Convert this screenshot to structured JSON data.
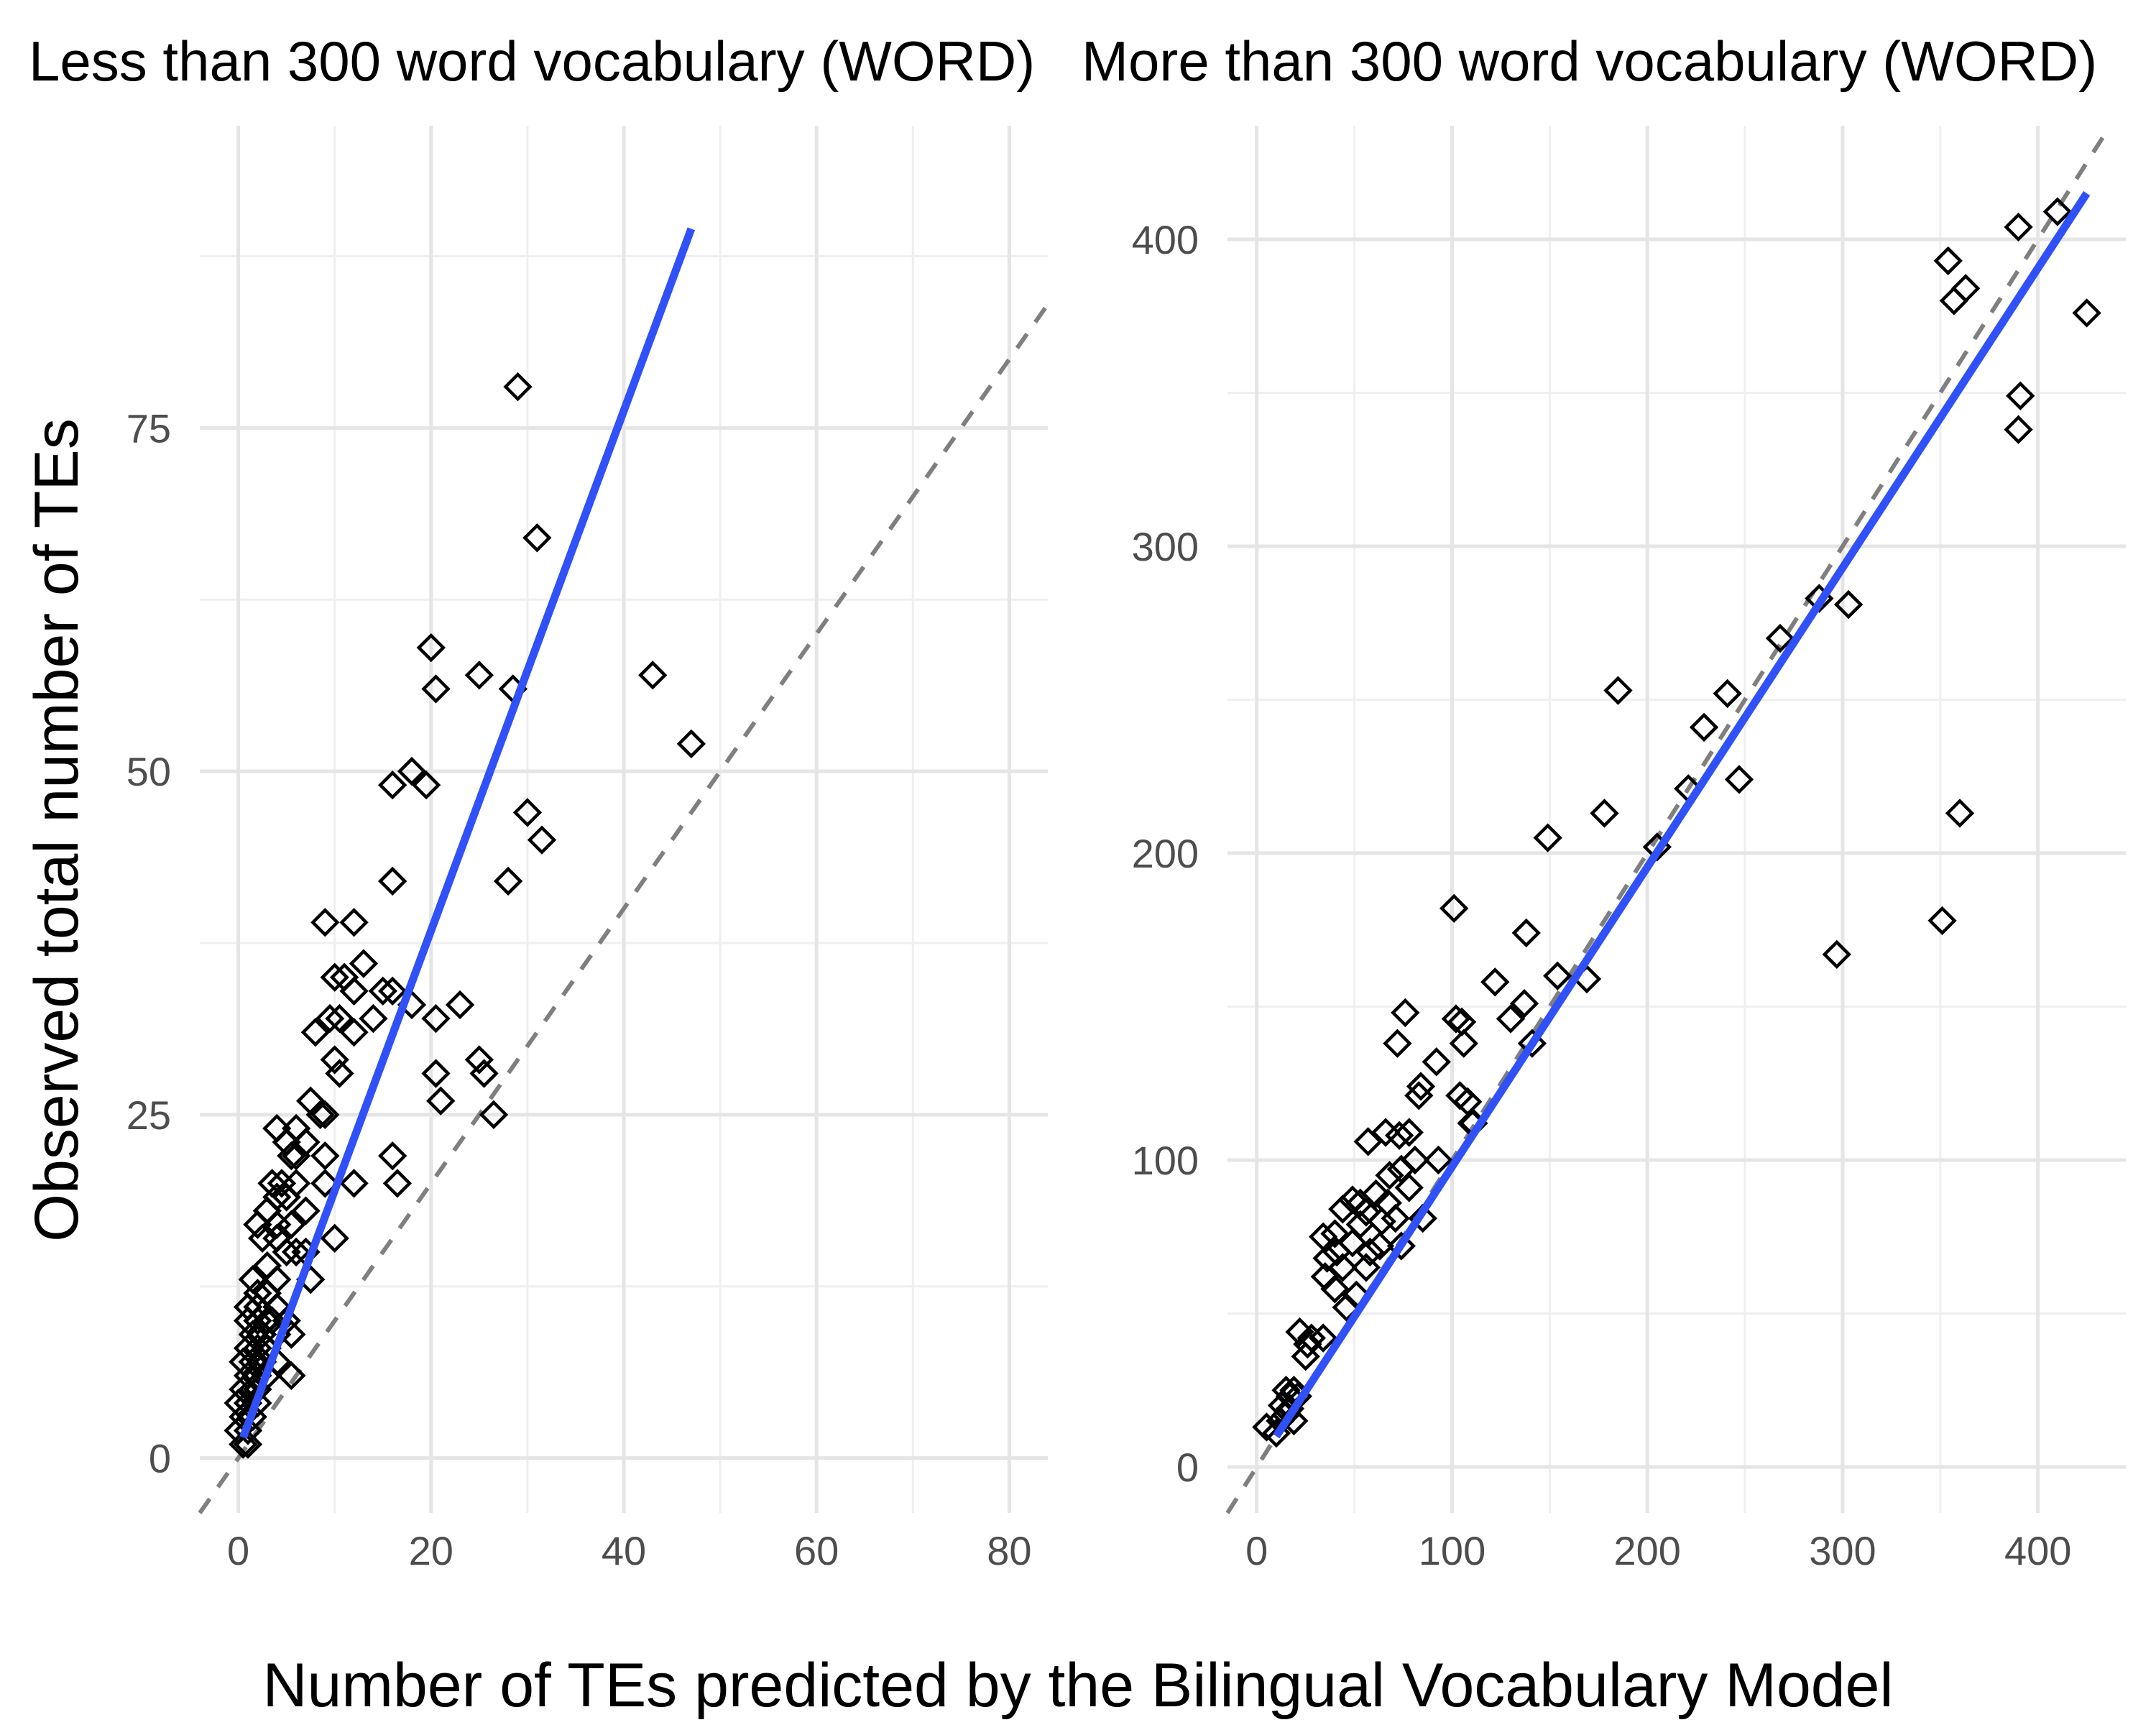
{
  "chart_data": [
    {
      "type": "scatter",
      "title": "Less than 300 word vocabulary (WORD)",
      "xlabel": "Number of TEs predicted by the Bilingual Vocabulary Model",
      "ylabel": "Observed total number of TEs",
      "xlim": [
        -4,
        84
      ],
      "ylim": [
        -4,
        97
      ],
      "x_ticks": [
        "0",
        "20",
        "40",
        "60",
        "80"
      ],
      "y_ticks": [
        "0",
        "25",
        "50",
        "75"
      ],
      "grid": true,
      "reference_line": {
        "style": "dashed",
        "slope": 1,
        "intercept": 0
      },
      "fit_line": {
        "x": [
          0.5,
          47
        ],
        "y": [
          1.5,
          89.5
        ]
      },
      "points": [
        [
          29,
          78
        ],
        [
          31,
          67
        ],
        [
          20,
          59
        ],
        [
          43,
          57
        ],
        [
          25,
          57
        ],
        [
          20.5,
          56
        ],
        [
          28.5,
          56
        ],
        [
          47,
          52
        ],
        [
          18,
          50
        ],
        [
          16,
          49
        ],
        [
          19.5,
          49
        ],
        [
          30,
          47
        ],
        [
          31.5,
          45
        ],
        [
          16,
          42
        ],
        [
          28,
          42
        ],
        [
          9,
          39
        ],
        [
          12,
          39
        ],
        [
          13,
          36
        ],
        [
          10,
          35
        ],
        [
          11,
          35
        ],
        [
          15,
          34
        ],
        [
          16,
          34
        ],
        [
          12,
          34
        ],
        [
          18,
          33
        ],
        [
          23,
          33
        ],
        [
          9.5,
          32
        ],
        [
          10.5,
          32
        ],
        [
          14,
          32
        ],
        [
          20.5,
          32
        ],
        [
          12,
          31
        ],
        [
          8,
          31
        ],
        [
          10,
          29
        ],
        [
          25,
          29
        ],
        [
          10.5,
          28
        ],
        [
          20.5,
          28
        ],
        [
          25.5,
          28
        ],
        [
          7.5,
          26
        ],
        [
          21,
          26
        ],
        [
          8.5,
          25
        ],
        [
          9,
          25
        ],
        [
          26.5,
          25
        ],
        [
          4,
          24
        ],
        [
          6,
          24
        ],
        [
          5,
          23
        ],
        [
          7,
          23
        ],
        [
          5.5,
          22
        ],
        [
          9,
          22
        ],
        [
          16,
          22
        ],
        [
          6,
          22
        ],
        [
          3.5,
          20
        ],
        [
          4.5,
          20
        ],
        [
          6,
          20
        ],
        [
          9,
          20
        ],
        [
          12,
          20
        ],
        [
          16.5,
          20
        ],
        [
          4,
          19
        ],
        [
          5,
          19
        ],
        [
          7,
          18
        ],
        [
          3,
          18
        ],
        [
          2,
          17
        ],
        [
          4,
          17
        ],
        [
          5.5,
          17
        ],
        [
          10,
          16
        ],
        [
          2.5,
          16
        ],
        [
          4,
          16
        ],
        [
          6,
          15
        ],
        [
          7,
          15
        ],
        [
          5,
          15
        ],
        [
          3,
          14
        ],
        [
          7.5,
          13
        ],
        [
          4,
          13
        ],
        [
          1.5,
          13
        ],
        [
          2,
          12
        ],
        [
          3,
          12
        ],
        [
          1,
          11
        ],
        [
          2,
          11
        ],
        [
          4,
          11
        ],
        [
          1,
          10
        ],
        [
          2,
          10
        ],
        [
          3,
          10
        ],
        [
          3.5,
          10
        ],
        [
          5,
          10
        ],
        [
          1.5,
          9
        ],
        [
          2.5,
          9
        ],
        [
          4,
          9
        ],
        [
          5.5,
          9
        ],
        [
          1,
          8
        ],
        [
          2,
          8
        ],
        [
          3,
          8
        ],
        [
          0.5,
          7
        ],
        [
          1.5,
          7
        ],
        [
          2.5,
          7
        ],
        [
          4,
          7
        ],
        [
          1,
          6
        ],
        [
          2,
          6
        ],
        [
          5.5,
          6
        ],
        [
          3,
          6
        ],
        [
          0.5,
          5
        ],
        [
          1.5,
          5
        ],
        [
          2,
          5
        ],
        [
          1,
          4
        ],
        [
          0,
          4
        ],
        [
          2,
          4
        ],
        [
          0.5,
          3
        ],
        [
          1.5,
          3
        ],
        [
          0,
          2
        ],
        [
          1,
          2
        ],
        [
          0.5,
          1
        ],
        [
          1,
          1
        ]
      ]
    },
    {
      "type": "scatter",
      "title": "More than 300 word vocabulary (WORD)",
      "xlim": [
        -15,
        445
      ],
      "ylim": [
        -15,
        437
      ],
      "x_ticks": [
        "0",
        "100",
        "200",
        "300",
        "400"
      ],
      "y_ticks": [
        "0",
        "100",
        "200",
        "300",
        "400"
      ],
      "grid": true,
      "reference_line": {
        "style": "dashed",
        "slope": 1,
        "intercept": 0
      },
      "fit_line": {
        "x": [
          10,
          425
        ],
        "y": [
          10,
          415
        ]
      },
      "points": [
        [
          410,
          409
        ],
        [
          390,
          404
        ],
        [
          354,
          393
        ],
        [
          363,
          384
        ],
        [
          357,
          380
        ],
        [
          425,
          376
        ],
        [
          391,
          349
        ],
        [
          390,
          338
        ],
        [
          303,
          281
        ],
        [
          288,
          283
        ],
        [
          268,
          270
        ],
        [
          185,
          253
        ],
        [
          241,
          252
        ],
        [
          229,
          241
        ],
        [
          247,
          224
        ],
        [
          221,
          221
        ],
        [
          178,
          213
        ],
        [
          360,
          213
        ],
        [
          149,
          205
        ],
        [
          205,
          202
        ],
        [
          351,
          178
        ],
        [
          297,
          167
        ],
        [
          101,
          182
        ],
        [
          138,
          174
        ],
        [
          122,
          158
        ],
        [
          154,
          160
        ],
        [
          169,
          159
        ],
        [
          137,
          151
        ],
        [
          130,
          146
        ],
        [
          76,
          148
        ],
        [
          102,
          146
        ],
        [
          105,
          145
        ],
        [
          141,
          138
        ],
        [
          106,
          138
        ],
        [
          72,
          138
        ],
        [
          92,
          132
        ],
        [
          84,
          124
        ],
        [
          83,
          121
        ],
        [
          104,
          121
        ],
        [
          108,
          119
        ],
        [
          110,
          112
        ],
        [
          111,
          112
        ],
        [
          57,
          106
        ],
        [
          66,
          109
        ],
        [
          78,
          109
        ],
        [
          73,
          108
        ],
        [
          81,
          100
        ],
        [
          93,
          100
        ],
        [
          74,
          97
        ],
        [
          68,
          95
        ],
        [
          78,
          91
        ],
        [
          61,
          89
        ],
        [
          49,
          87
        ],
        [
          53,
          86
        ],
        [
          67,
          86
        ],
        [
          44,
          84
        ],
        [
          56,
          83
        ],
        [
          71,
          81
        ],
        [
          64,
          80
        ],
        [
          85,
          81
        ],
        [
          53,
          79
        ],
        [
          40,
          76
        ],
        [
          34,
          75
        ],
        [
          49,
          73
        ],
        [
          63,
          72
        ],
        [
          74,
          72
        ],
        [
          41,
          70
        ],
        [
          58,
          70
        ],
        [
          36,
          68
        ],
        [
          44,
          65
        ],
        [
          56,
          65
        ],
        [
          35,
          62
        ],
        [
          40,
          58
        ],
        [
          51,
          56
        ],
        [
          46,
          52
        ],
        [
          22,
          44
        ],
        [
          28,
          42
        ],
        [
          34,
          42
        ],
        [
          26,
          40
        ],
        [
          25,
          36
        ],
        [
          15,
          25
        ],
        [
          19,
          25
        ],
        [
          17,
          23
        ],
        [
          21,
          23
        ],
        [
          13,
          20
        ],
        [
          17,
          19
        ],
        [
          15,
          17
        ],
        [
          12,
          15
        ],
        [
          19,
          15
        ],
        [
          5,
          13
        ],
        [
          10,
          11
        ]
      ]
    }
  ]
}
